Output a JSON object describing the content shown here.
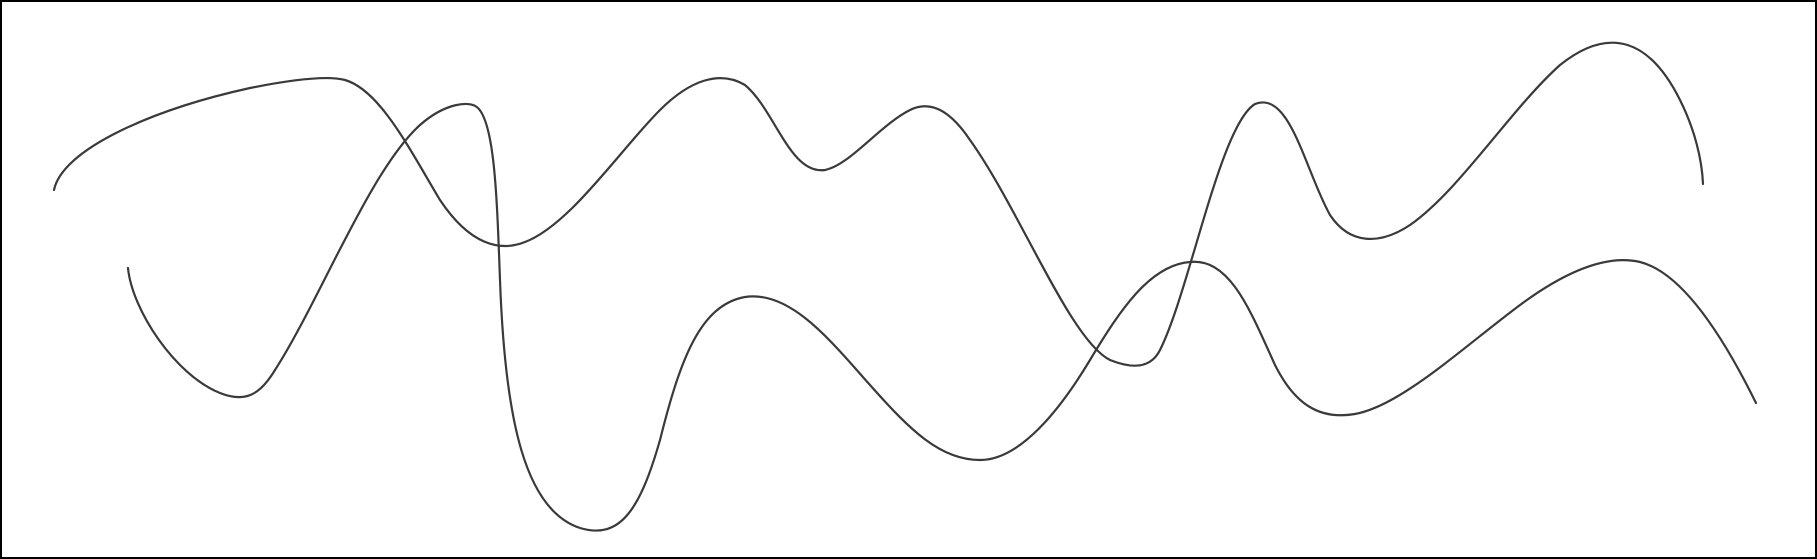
{
  "colors": {
    "background": "#ffffff",
    "border": "#000000",
    "stroke": "#3a3a3a"
  },
  "curves": [
    {
      "name": "curve-upper"
    },
    {
      "name": "curve-lower"
    }
  ]
}
